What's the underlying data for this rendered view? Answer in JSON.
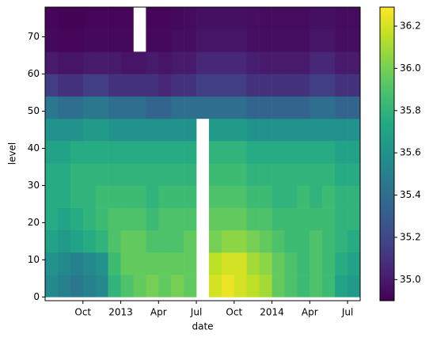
{
  "chart_data": {
    "type": "heatmap",
    "xlabel": "date",
    "ylabel": "level",
    "x": [
      "2012-07",
      "2012-08",
      "2012-09",
      "2012-10",
      "2012-11",
      "2012-12",
      "2013-01",
      "2013-02",
      "2013-03",
      "2013-04",
      "2013-05",
      "2013-06",
      "2013-07",
      "2013-08",
      "2013-09",
      "2013-10",
      "2013-11",
      "2013-12",
      "2014-01",
      "2014-02",
      "2014-03",
      "2014-04",
      "2014-05",
      "2014-06",
      "2014-07"
    ],
    "xlim": [
      "2012-07",
      "2014-08"
    ],
    "xticks": [
      {
        "value": "2012-10",
        "label": "Oct"
      },
      {
        "value": "2013-01",
        "label": "2013"
      },
      {
        "value": "2013-04",
        "label": "Apr"
      },
      {
        "value": "2013-07",
        "label": "Jul"
      },
      {
        "value": "2013-10",
        "label": "Oct"
      },
      {
        "value": "2014-01",
        "label": "2014"
      },
      {
        "value": "2014-04",
        "label": "Apr"
      },
      {
        "value": "2014-07",
        "label": "Jul"
      }
    ],
    "ybins": [
      0,
      6,
      12,
      18,
      24,
      30,
      36,
      42,
      48,
      54,
      60,
      66,
      72,
      78
    ],
    "ylim": [
      -1,
      78
    ],
    "yticks": [
      0,
      10,
      20,
      30,
      40,
      50,
      60,
      70
    ],
    "cmap": "viridis",
    "clim": [
      34.9,
      36.29
    ],
    "cticks": [
      {
        "value": 35,
        "label": "35.0"
      },
      35.2,
      35.4,
      35.6,
      35.8,
      {
        "value": 36,
        "label": "36.0"
      },
      36.2
    ],
    "z": [
      [
        35.55,
        35.5,
        35.45,
        35.5,
        35.55,
        35.8,
        35.9,
        35.95,
        36.0,
        35.95,
        36.0,
        35.95,
        null,
        36.2,
        36.25,
        36.2,
        36.15,
        36.1,
        35.95,
        35.9,
        35.85,
        35.9,
        35.85,
        35.7,
        35.65
      ],
      [
        35.6,
        35.55,
        35.5,
        35.55,
        35.6,
        35.85,
        35.95,
        35.95,
        35.95,
        35.95,
        35.95,
        35.95,
        null,
        36.15,
        36.2,
        36.2,
        36.1,
        36.05,
        35.95,
        35.9,
        35.85,
        35.9,
        35.85,
        35.75,
        35.7
      ],
      [
        35.7,
        35.65,
        35.7,
        35.75,
        35.8,
        35.9,
        35.95,
        35.95,
        35.9,
        35.9,
        35.9,
        35.95,
        null,
        36.0,
        36.05,
        36.05,
        36.0,
        35.95,
        35.9,
        35.85,
        35.85,
        35.9,
        35.85,
        35.8,
        35.75
      ],
      [
        35.75,
        35.7,
        35.75,
        35.8,
        35.85,
        35.9,
        35.9,
        35.9,
        35.85,
        35.9,
        35.9,
        35.9,
        null,
        35.95,
        35.95,
        35.95,
        35.9,
        35.9,
        35.85,
        35.85,
        35.85,
        35.85,
        35.85,
        35.8,
        35.8
      ],
      [
        35.75,
        35.75,
        35.8,
        35.8,
        35.85,
        35.85,
        35.85,
        35.85,
        35.8,
        35.85,
        35.85,
        35.85,
        null,
        35.9,
        35.9,
        35.9,
        35.85,
        35.85,
        35.8,
        35.8,
        35.85,
        35.8,
        35.85,
        35.8,
        35.8
      ],
      [
        35.75,
        35.75,
        35.8,
        35.8,
        35.8,
        35.8,
        35.8,
        35.8,
        35.8,
        35.8,
        35.8,
        35.8,
        null,
        35.85,
        35.85,
        35.85,
        35.8,
        35.8,
        35.8,
        35.8,
        35.8,
        35.8,
        35.8,
        35.75,
        35.75
      ],
      [
        35.7,
        35.7,
        35.75,
        35.75,
        35.75,
        35.75,
        35.75,
        35.75,
        35.75,
        35.75,
        35.75,
        35.75,
        null,
        35.8,
        35.8,
        35.8,
        35.75,
        35.75,
        35.75,
        35.75,
        35.75,
        35.75,
        35.75,
        35.7,
        35.7
      ],
      [
        35.6,
        35.6,
        35.6,
        35.65,
        35.65,
        35.6,
        35.6,
        35.6,
        35.6,
        35.6,
        35.6,
        35.6,
        null,
        35.65,
        35.65,
        35.65,
        35.6,
        35.6,
        35.6,
        35.6,
        35.6,
        35.6,
        35.6,
        35.6,
        35.6
      ],
      [
        35.45,
        35.4,
        35.4,
        35.45,
        35.45,
        35.4,
        35.4,
        35.4,
        35.35,
        35.35,
        35.4,
        35.4,
        35.4,
        35.4,
        35.4,
        35.4,
        35.35,
        35.35,
        35.35,
        35.35,
        35.35,
        35.4,
        35.4,
        35.35,
        35.35
      ],
      [
        35.15,
        35.1,
        35.1,
        35.15,
        35.15,
        35.1,
        35.1,
        35.1,
        35.1,
        35.05,
        35.1,
        35.1,
        35.15,
        35.15,
        35.15,
        35.15,
        35.1,
        35.1,
        35.1,
        35.1,
        35.1,
        35.15,
        35.15,
        35.1,
        35.1
      ],
      [
        35.0,
        34.98,
        34.98,
        35.0,
        35.0,
        35.0,
        34.98,
        34.98,
        35.0,
        34.98,
        35.0,
        35.0,
        35.05,
        35.05,
        35.05,
        35.05,
        35.02,
        35.0,
        35.0,
        35.0,
        35.0,
        35.05,
        35.05,
        35.0,
        35.0
      ],
      [
        34.93,
        34.92,
        34.92,
        34.93,
        34.93,
        34.93,
        34.93,
        null,
        34.93,
        34.93,
        34.95,
        34.95,
        34.98,
        34.98,
        34.98,
        34.98,
        34.96,
        34.95,
        34.95,
        34.95,
        34.95,
        34.98,
        34.98,
        34.95,
        34.95
      ],
      [
        34.92,
        34.91,
        34.91,
        34.92,
        34.92,
        34.92,
        34.92,
        null,
        34.92,
        34.92,
        34.93,
        34.94,
        34.96,
        34.96,
        34.96,
        34.96,
        34.95,
        34.94,
        34.94,
        34.94,
        34.94,
        34.96,
        34.96,
        34.94,
        34.94
      ]
    ]
  }
}
